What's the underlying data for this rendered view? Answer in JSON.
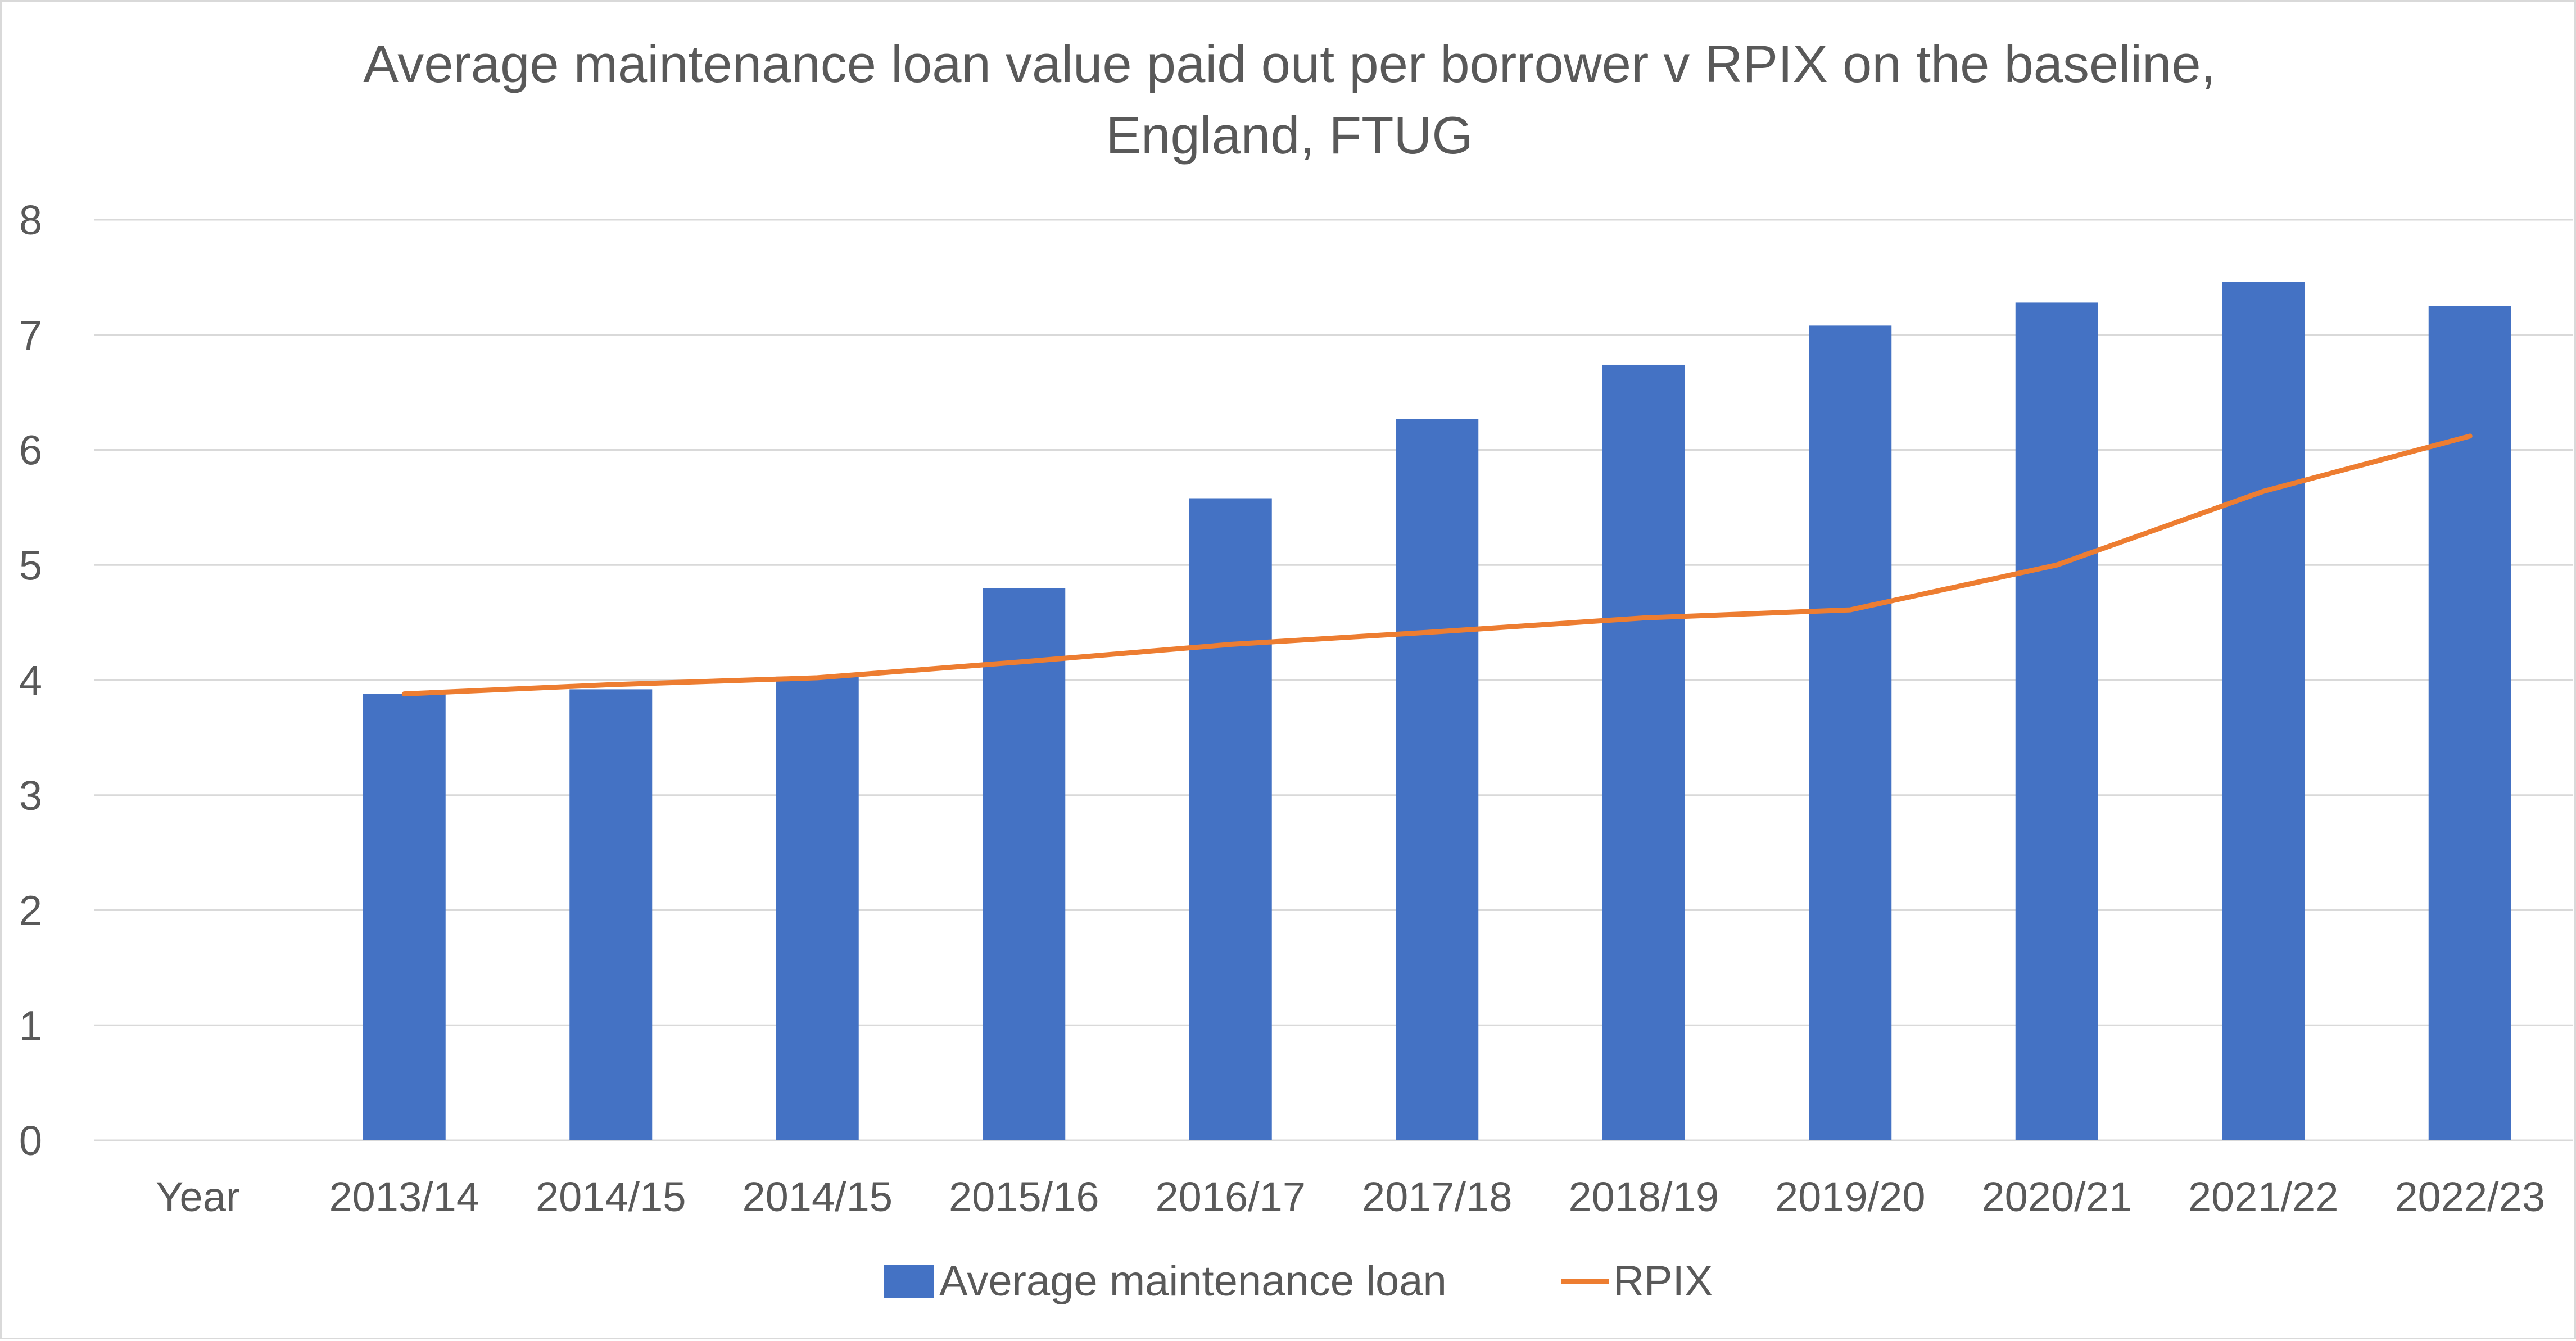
{
  "chart_data": {
    "type": "bar",
    "title_lines": [
      "Average maintenance loan value paid out per borrower v RPIX on the baseline,",
      "England, FTUG"
    ],
    "categories": [
      "Year",
      "2013/14",
      "2014/15",
      "2014/15",
      "2015/16",
      "2016/17",
      "2017/18",
      "2018/19",
      "2019/20",
      "2020/21",
      "2021/22",
      "2022/23"
    ],
    "series": [
      {
        "name": "Average maintenance loan",
        "kind": "bar",
        "color": "#4472c4",
        "values": [
          null,
          3.88,
          3.92,
          4.03,
          4.8,
          5.58,
          6.27,
          6.74,
          7.08,
          7.28,
          7.46,
          7.25
        ]
      },
      {
        "name": "RPIX",
        "kind": "line",
        "color": "#ed7d31",
        "values": [
          null,
          3.88,
          3.96,
          4.02,
          4.16,
          4.31,
          4.42,
          4.54,
          4.61,
          5.0,
          5.64,
          6.12
        ]
      }
    ],
    "ylim": [
      0,
      8
    ],
    "yticks": [
      0,
      1,
      2,
      3,
      4,
      5,
      6,
      7,
      8
    ],
    "grid": true,
    "legend_position": "bottom"
  }
}
